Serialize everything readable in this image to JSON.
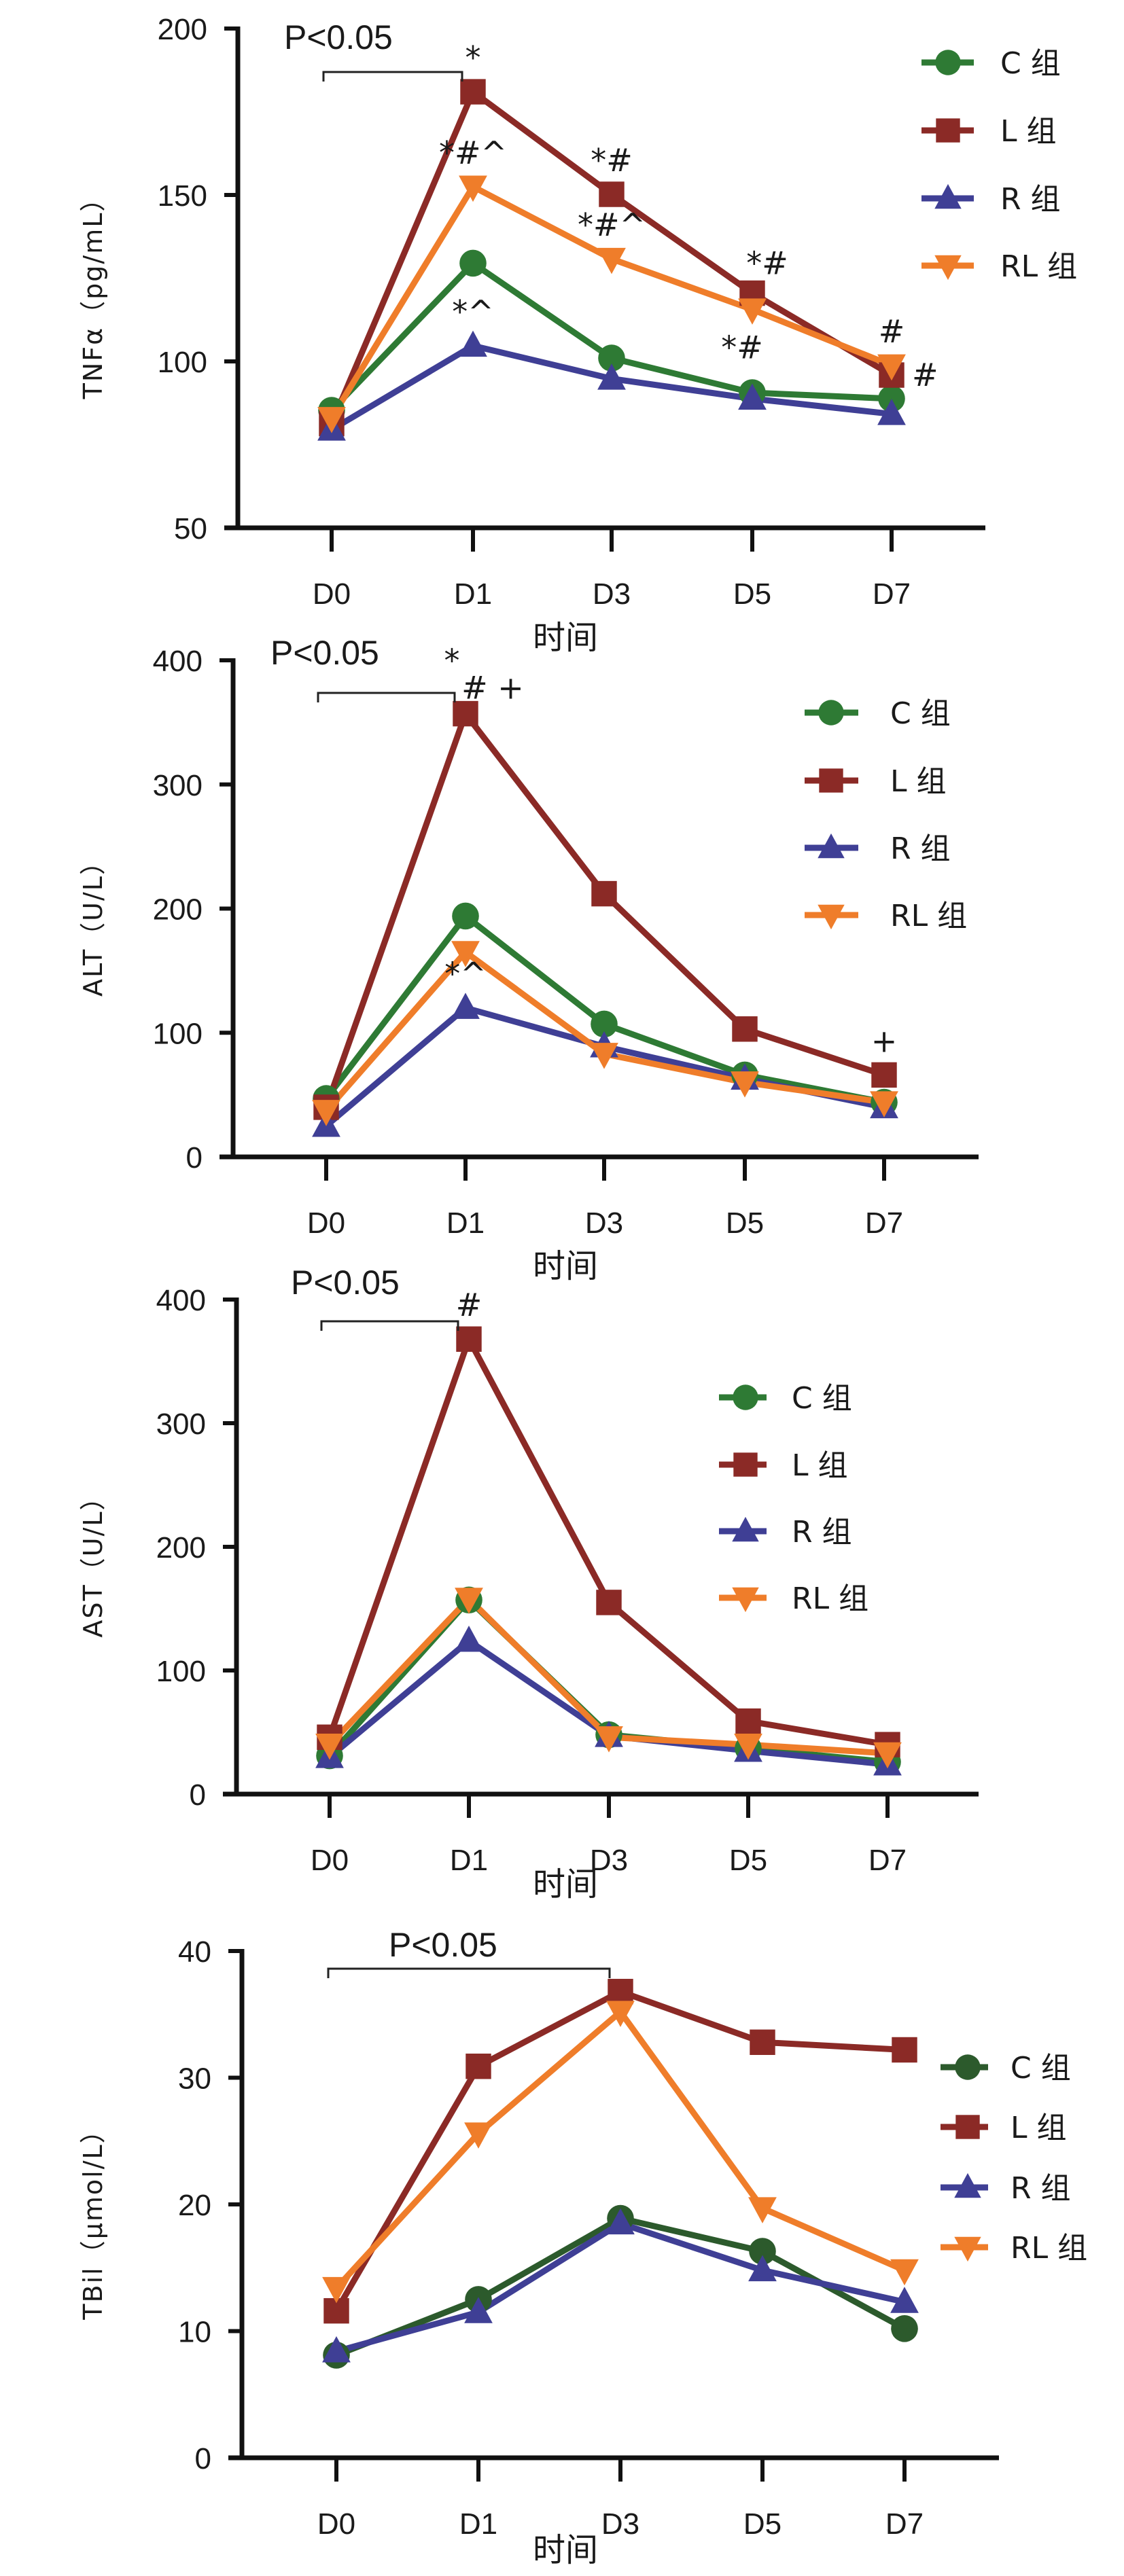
{
  "chart_data": [
    {
      "type": "line",
      "id": "tnf",
      "title": "",
      "ylabel": "TNFα（pg/mL）",
      "xlabel": "时间",
      "categories": [
        "D0",
        "D1",
        "D3",
        "D5",
        "D7"
      ],
      "ylim": [
        50,
        200
      ],
      "yticks": [
        50,
        100,
        150,
        200
      ],
      "legend_position": "top-right",
      "series": [
        {
          "name": "C 组",
          "marker": "circle",
          "color": "#2e7a34",
          "values": [
            85.3,
            129.5,
            101.0,
            90.6,
            88.8
          ]
        },
        {
          "name": "L 组",
          "marker": "square",
          "color": "#8b2a26",
          "values": [
            81.3,
            181.0,
            150.2,
            120.5,
            95.9
          ]
        },
        {
          "name": "R 组",
          "marker": "triangle-up",
          "color": "#3f3f95",
          "values": [
            79.5,
            104.7,
            94.8,
            88.8,
            84.2
          ]
        },
        {
          "name": "RL 组",
          "marker": "triangle-down",
          "color": "#ef7d2a",
          "values": [
            83.0,
            152.5,
            130.8,
            115.6,
            98.8
          ]
        }
      ],
      "significance": {
        "label": "P<0.05",
        "from": "D0",
        "to": "D1"
      },
      "annotations": [
        {
          "text": "*",
          "x": "D1",
          "series": "L 组",
          "pos": "above"
        },
        {
          "text": "*#^",
          "x": "D1",
          "series": "RL 组",
          "pos": "above"
        },
        {
          "text": "*^",
          "x": "D1",
          "series": "R 组",
          "pos": "above"
        },
        {
          "text": "*#",
          "x": "D3",
          "series": "L 组",
          "pos": "above"
        },
        {
          "text": "*#^",
          "x": "D3",
          "series": "RL 组",
          "pos": "above"
        },
        {
          "text": "*#",
          "x": "D5",
          "series": "L 组",
          "pos": "above-right"
        },
        {
          "text": "*#",
          "x": "D5",
          "series": "RL 组",
          "pos": "below"
        },
        {
          "text": "#",
          "x": "D7",
          "series": "RL 组",
          "pos": "above"
        },
        {
          "text": "#",
          "x": "D7",
          "series": "L 组",
          "pos": "right"
        }
      ]
    },
    {
      "type": "line",
      "id": "alt",
      "title": "",
      "ylabel": "ALT（U/L）",
      "xlabel": "时间",
      "categories": [
        "D0",
        "D1",
        "D3",
        "D5",
        "D7"
      ],
      "ylim": [
        0,
        400
      ],
      "yticks": [
        0,
        100,
        200,
        300,
        400
      ],
      "legend_position": "right",
      "series": [
        {
          "name": "C 组",
          "marker": "circle",
          "color": "#2e7a34",
          "values": [
            47,
            194,
            107,
            66,
            44
          ]
        },
        {
          "name": "L 组",
          "marker": "square",
          "color": "#8b2a26",
          "values": [
            40,
            357,
            212,
            103,
            66
          ]
        },
        {
          "name": "R 组",
          "marker": "triangle-up",
          "color": "#3f3f95",
          "values": [
            25,
            120,
            89,
            63,
            40
          ]
        },
        {
          "name": "RL 组",
          "marker": "triangle-down",
          "color": "#ef7d2a",
          "values": [
            37,
            165,
            83,
            60,
            44
          ]
        }
      ],
      "significance": {
        "label": "P<0.05",
        "from": "D0",
        "to": "D1"
      },
      "annotations": [
        {
          "text": "*",
          "x": "D1",
          "series": "L 组",
          "pos": "top"
        },
        {
          "text": "# +",
          "x": "D1",
          "series": "L 组",
          "pos": "above"
        },
        {
          "text": "*^",
          "x": "D1",
          "series": "R 组",
          "pos": "above"
        },
        {
          "text": "+",
          "x": "D7",
          "series": "L 组",
          "pos": "above"
        }
      ]
    },
    {
      "type": "line",
      "id": "ast",
      "title": "",
      "ylabel": "AST（U/L）",
      "xlabel": "时间",
      "categories": [
        "D0",
        "D1",
        "D3",
        "D5",
        "D7"
      ],
      "ylim": [
        0,
        400
      ],
      "yticks": [
        0,
        100,
        200,
        300,
        400
      ],
      "legend_position": "right",
      "series": [
        {
          "name": "C 组",
          "marker": "circle",
          "color": "#2e7a34",
          "values": [
            31,
            157,
            48,
            37,
            26
          ]
        },
        {
          "name": "L 组",
          "marker": "square",
          "color": "#8b2a26",
          "values": [
            46,
            368,
            155,
            59,
            40
          ]
        },
        {
          "name": "R 组",
          "marker": "triangle-up",
          "color": "#3f3f95",
          "values": [
            30,
            124,
            47,
            35,
            24
          ]
        },
        {
          "name": "RL 组",
          "marker": "triangle-down",
          "color": "#ef7d2a",
          "values": [
            40,
            158,
            46,
            40,
            33
          ]
        }
      ],
      "significance": {
        "label": "P<0.05",
        "from": "D0",
        "to": "D1"
      },
      "annotations": [
        {
          "text": "#",
          "x": "D1",
          "series": "L 组",
          "pos": "above"
        }
      ]
    },
    {
      "type": "line",
      "id": "tbil",
      "title": "",
      "ylabel": "TBil（μmol/L）",
      "xlabel": "时间",
      "categories": [
        "D0",
        "D1",
        "D3",
        "D5",
        "D7"
      ],
      "ylim": [
        0,
        40
      ],
      "yticks": [
        0,
        10,
        20,
        30,
        40
      ],
      "legend_position": "right",
      "series": [
        {
          "name": "C 组",
          "marker": "circle",
          "color": "#2c5a2c",
          "values": [
            8.1,
            12.5,
            18.9,
            16.3,
            10.2
          ]
        },
        {
          "name": "L 组",
          "marker": "square",
          "color": "#8b2a26",
          "values": [
            11.6,
            30.9,
            36.8,
            32.8,
            32.2
          ]
        },
        {
          "name": "R 组",
          "marker": "triangle-up",
          "color": "#3f3f95",
          "values": [
            8.4,
            11.5,
            18.5,
            14.8,
            12.3
          ]
        },
        {
          "name": "RL 组",
          "marker": "triangle-down",
          "color": "#ef7d2a",
          "values": [
            13.4,
            25.6,
            35.2,
            19.7,
            14.8
          ]
        }
      ],
      "significance": {
        "label": "P<0.05",
        "from": "D0",
        "to": "D3"
      },
      "annotations": []
    }
  ]
}
